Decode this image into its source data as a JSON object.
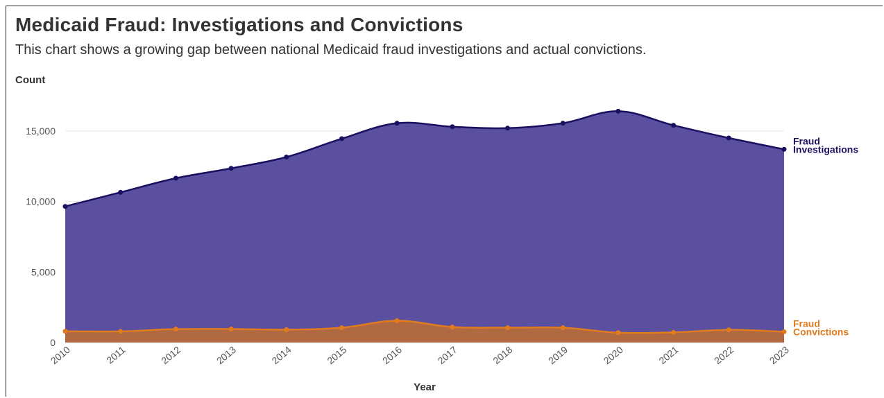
{
  "header": {
    "title": "Medicaid Fraud: Investigations and Convictions",
    "subtitle": "This chart shows a growing gap between national Medicaid fraud investigations and actual convictions."
  },
  "colors": {
    "investigations_line": "#1a1060",
    "investigations_fill": "#5b4fa0",
    "convictions_line": "#e07c1e",
    "convictions_fill": "#b66a3c"
  },
  "chart_data": {
    "type": "area",
    "title": "Medicaid Fraud: Investigations and Convictions",
    "subtitle": "This chart shows a growing gap between national Medicaid fraud investigations and actual convictions.",
    "xlabel": "Year",
    "ylabel": "Count",
    "x": [
      "2010",
      "2011",
      "2012",
      "2013",
      "2014",
      "2015",
      "2016",
      "2017",
      "2018",
      "2019",
      "2020",
      "2021",
      "2022",
      "2023"
    ],
    "ylim": [
      0,
      17500
    ],
    "yticks": [
      0,
      5000,
      10000,
      15000
    ],
    "ytick_labels": [
      "0",
      "5,000",
      "10,000",
      "15,000"
    ],
    "grid": true,
    "legend": "direct labels at right end of series",
    "series": [
      {
        "name": "Fraud Investigations",
        "label_lines": [
          "Fraud",
          "Investigations"
        ],
        "values": [
          9650,
          10650,
          11650,
          12350,
          13150,
          14450,
          15550,
          15300,
          15200,
          15550,
          16400,
          15400,
          14500,
          13700
        ]
      },
      {
        "name": "Fraud Convictions",
        "label_lines": [
          "Fraud",
          "Convictions"
        ],
        "values": [
          800,
          790,
          950,
          960,
          910,
          1050,
          1550,
          1100,
          1050,
          1050,
          700,
          720,
          900,
          760
        ]
      }
    ]
  }
}
